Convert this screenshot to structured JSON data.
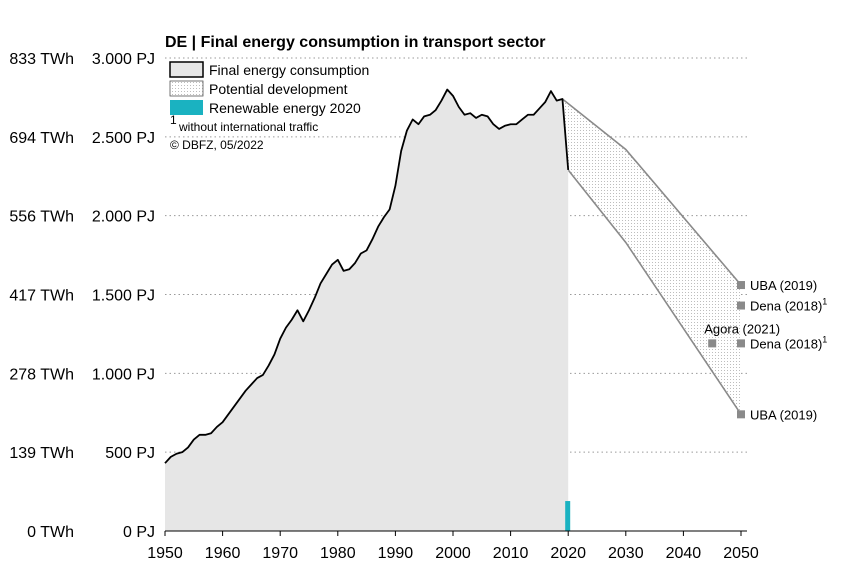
{
  "chart_data": {
    "type": "area",
    "title": "DE | Final energy consumption in transport sector",
    "y_axis_pj": {
      "ticks": [
        "0 PJ",
        "500 PJ",
        "1.000 PJ",
        "1.500 PJ",
        "2.000 PJ",
        "2.500 PJ",
        "3.000 PJ"
      ],
      "values": [
        0,
        500,
        1000,
        1500,
        2000,
        2500,
        3000
      ]
    },
    "y_axis_twh": {
      "ticks": [
        "0 TWh",
        "139 TWh",
        "278 TWh",
        "417 TWh",
        "556 TWh",
        "694 TWh",
        "833 TWh"
      ]
    },
    "x_axis": {
      "ticks": [
        "1950",
        "1960",
        "1970",
        "1980",
        "1990",
        "2000",
        "2010",
        "2020",
        "2030",
        "2040",
        "2050"
      ],
      "values": [
        1950,
        1960,
        1970,
        1980,
        1990,
        2000,
        2010,
        2020,
        2030,
        2040,
        2050
      ],
      "xlim": [
        1950,
        2050
      ]
    },
    "ylim": [
      0,
      3000
    ],
    "grid": "horizontal dotted",
    "legend": {
      "placement": "top-left",
      "items": [
        "Final energy consumption",
        "Potential development",
        "Renewable energy 2020"
      ]
    },
    "notes": [
      "without international traffic",
      "© DBFZ, 05/2022"
    ],
    "note_superscript": "1",
    "colors": {
      "area_fill": "#e6e6e6",
      "line": "#000000",
      "renewable": "#1ab2c1",
      "projection_line": "#8a8a8a",
      "scenario_marker": "#8a8a8a"
    },
    "series": [
      {
        "name": "Final energy consumption",
        "x": [
          1950,
          1951,
          1952,
          1953,
          1954,
          1955,
          1956,
          1957,
          1958,
          1959,
          1960,
          1961,
          1962,
          1963,
          1964,
          1965,
          1966,
          1967,
          1968,
          1969,
          1970,
          1971,
          1972,
          1973,
          1974,
          1975,
          1976,
          1977,
          1978,
          1979,
          1980,
          1981,
          1982,
          1983,
          1984,
          1985,
          1986,
          1987,
          1988,
          1989,
          1990,
          1991,
          1992,
          1993,
          1994,
          1995,
          1996,
          1997,
          1998,
          1999,
          2000,
          2001,
          2002,
          2003,
          2004,
          2005,
          2006,
          2007,
          2008,
          2009,
          2010,
          2011,
          2012,
          2013,
          2014,
          2015,
          2016,
          2017,
          2018,
          2019,
          2020
        ],
        "values": [
          430,
          470,
          490,
          500,
          530,
          580,
          610,
          610,
          620,
          660,
          690,
          740,
          790,
          840,
          890,
          930,
          970,
          990,
          1050,
          1120,
          1220,
          1290,
          1340,
          1400,
          1330,
          1400,
          1480,
          1570,
          1630,
          1690,
          1720,
          1650,
          1660,
          1700,
          1760,
          1780,
          1850,
          1930,
          1990,
          2040,
          2190,
          2410,
          2540,
          2610,
          2580,
          2630,
          2640,
          2670,
          2730,
          2800,
          2760,
          2690,
          2640,
          2650,
          2620,
          2640,
          2630,
          2580,
          2550,
          2570,
          2580,
          2580,
          2610,
          2640,
          2640,
          2680,
          2720,
          2790,
          2730,
          2740,
          2290
        ]
      },
      {
        "name": "Renewable energy 2020",
        "x": [
          2020
        ],
        "values": [
          190
        ]
      }
    ],
    "projection": {
      "name": "Potential development",
      "upper": {
        "x": [
          2019,
          2030,
          2050
        ],
        "values": [
          2740,
          2420,
          1560
        ]
      },
      "lower": {
        "x": [
          2020,
          2030,
          2050
        ],
        "values": [
          2290,
          1830,
          740
        ]
      }
    },
    "scenarios": [
      {
        "label": "UBA (2019)",
        "sup": "",
        "year": 2050,
        "value": 1560
      },
      {
        "label": "Dena (2018)",
        "sup": "1",
        "year": 2050,
        "value": 1430
      },
      {
        "label": "Dena (2018)",
        "sup": "1",
        "year": 2050,
        "value": 1190
      },
      {
        "label": "Agora (2021)",
        "sup": "",
        "year": 2045,
        "value": 1190
      },
      {
        "label": "UBA (2019)",
        "sup": "",
        "year": 2050,
        "value": 740
      }
    ]
  }
}
